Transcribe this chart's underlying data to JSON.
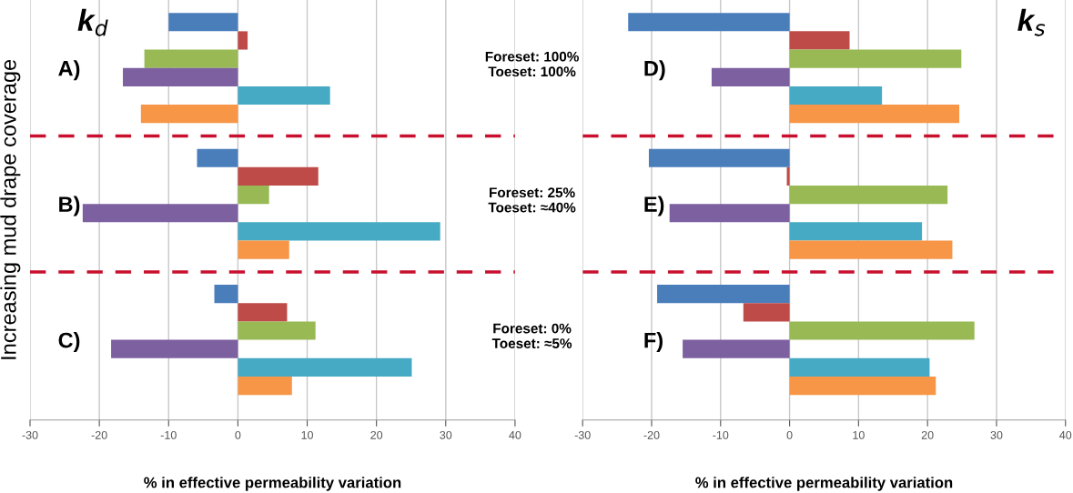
{
  "chart_data": [
    {
      "type": "bar",
      "orientation": "horizontal",
      "title": "k$_{d}$",
      "xlabel": "% in effective permeability variation",
      "ylabel": "Increasing mud drape coverage",
      "categories": [
        "A)",
        "B)",
        "C)"
      ],
      "series": [
        {
          "color": "#4a7ebb",
          "values": [
            -10,
            -5.9,
            -3.4
          ]
        },
        {
          "color": "#be4b48",
          "values": [
            1.4,
            11.6,
            7.1
          ]
        },
        {
          "color": "#98b954",
          "values": [
            -13.5,
            4.5,
            11.2
          ]
        },
        {
          "color": "#7d60a0",
          "values": [
            -16.6,
            -22.4,
            -18.3
          ]
        },
        {
          "color": "#46aac5",
          "values": [
            13.3,
            29.2,
            25.1
          ]
        },
        {
          "color": "#f79646",
          "values": [
            -14,
            7.4,
            7.8
          ]
        }
      ],
      "xlim": [
        -30,
        40
      ],
      "xticks": [
        -30,
        -20,
        -10,
        0,
        10,
        20,
        30,
        40
      ],
      "grid": "x",
      "annotations": [
        "Foreset: 100%\nToeset: 100%",
        "Foreset: 25%\nToeset: ≈40%",
        "Foreset: 0%\nToeset: ≈5%"
      ]
    },
    {
      "type": "bar",
      "orientation": "horizontal",
      "title": "k$_{s}$",
      "xlabel": "% in effective permeability variation",
      "categories": [
        "D)",
        "E)",
        "F)"
      ],
      "series": [
        {
          "color": "#4a7ebb",
          "values": [
            -23.4,
            -20.4,
            -19.2
          ]
        },
        {
          "color": "#be4b48",
          "values": [
            8.7,
            -0.4,
            -6.7
          ]
        },
        {
          "color": "#98b954",
          "values": [
            24.9,
            22.9,
            26.8
          ]
        },
        {
          "color": "#7d60a0",
          "values": [
            -11.3,
            -17.4,
            -15.5
          ]
        },
        {
          "color": "#46aac5",
          "values": [
            13.4,
            19.2,
            20.3
          ]
        },
        {
          "color": "#f79646",
          "values": [
            24.6,
            23.6,
            21.2
          ]
        }
      ],
      "xlim": [
        -30,
        40
      ],
      "xticks": [
        -30,
        -20,
        -10,
        0,
        10,
        20,
        30,
        40
      ],
      "grid": "x"
    }
  ]
}
